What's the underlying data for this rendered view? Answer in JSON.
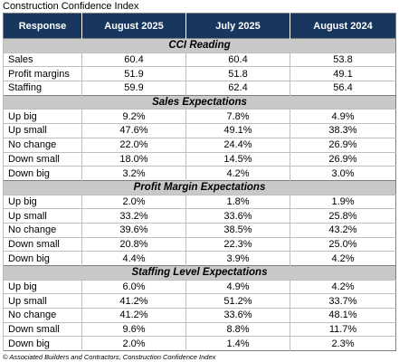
{
  "title": "Construction Confidence Index",
  "table": {
    "columns": [
      "Response",
      "August 2025",
      "July 2025",
      "August 2024"
    ],
    "sections": [
      {
        "heading": "CCI Reading",
        "rows": [
          [
            "Sales",
            "60.4",
            "60.4",
            "53.8"
          ],
          [
            "Profit margins",
            "51.9",
            "51.8",
            "49.1"
          ],
          [
            "Staffing",
            "59.9",
            "62.4",
            "56.4"
          ]
        ]
      },
      {
        "heading": "Sales Expectations",
        "rows": [
          [
            "Up big",
            "9.2%",
            "7.8%",
            "4.9%"
          ],
          [
            "Up small",
            "47.6%",
            "49.1%",
            "38.3%"
          ],
          [
            "No change",
            "22.0%",
            "24.4%",
            "26.9%"
          ],
          [
            "Down small",
            "18.0%",
            "14.5%",
            "26.9%"
          ],
          [
            "Down big",
            "3.2%",
            "4.2%",
            "3.0%"
          ]
        ]
      },
      {
        "heading": "Profit Margin Expectations",
        "rows": [
          [
            "Up big",
            "2.0%",
            "1.8%",
            "1.9%"
          ],
          [
            "Up small",
            "33.2%",
            "33.6%",
            "25.8%"
          ],
          [
            "No change",
            "39.6%",
            "38.5%",
            "43.2%"
          ],
          [
            "Down small",
            "20.8%",
            "22.3%",
            "25.0%"
          ],
          [
            "Down big",
            "4.4%",
            "3.9%",
            "4.2%"
          ]
        ]
      },
      {
        "heading": "Staffing Level Expectations",
        "rows": [
          [
            "Up big",
            "6.0%",
            "4.9%",
            "4.2%"
          ],
          [
            "Up small",
            "41.2%",
            "51.2%",
            "33.7%"
          ],
          [
            "No change",
            "41.2%",
            "33.6%",
            "48.1%"
          ],
          [
            "Down small",
            "9.6%",
            "8.8%",
            "11.7%"
          ],
          [
            "Down big",
            "2.0%",
            "1.4%",
            "2.3%"
          ]
        ]
      }
    ]
  },
  "footer": "© Associated Builders and Contractors, Construction Confidence Index"
}
